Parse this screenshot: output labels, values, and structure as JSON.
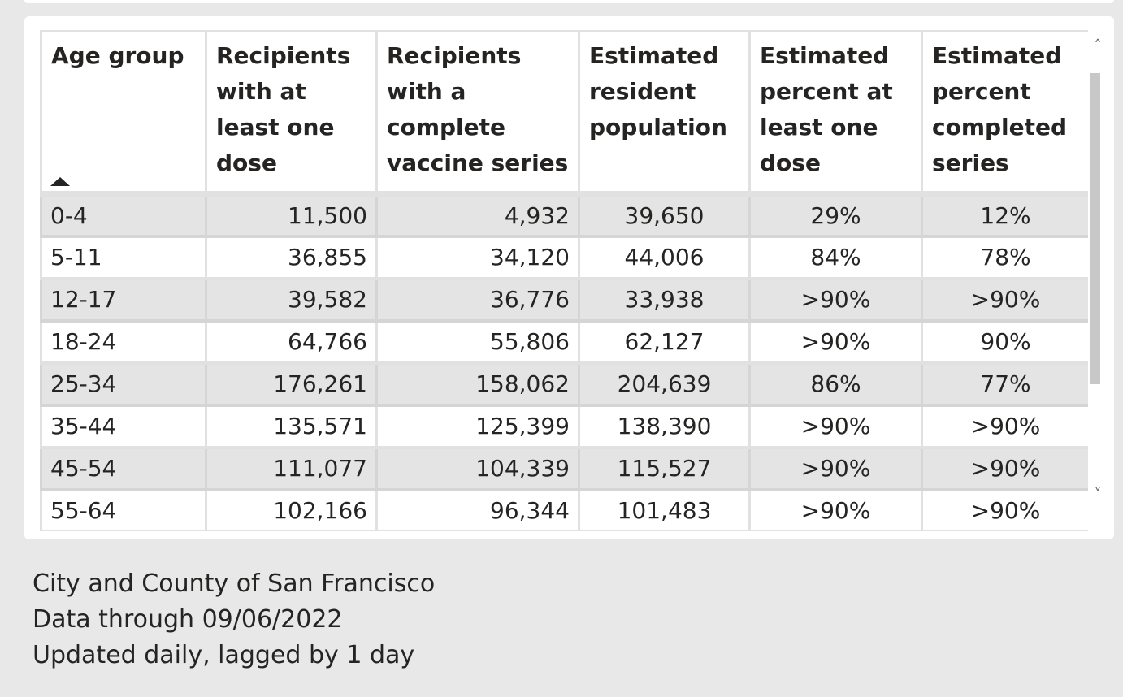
{
  "table": {
    "headers": [
      "Age group",
      "Recipients with at least one dose",
      "Recipients with a complete vaccine series",
      "Estimated resident population",
      "Estimated percent at least one dose",
      "Estimated percent completed series"
    ],
    "sort": {
      "column": "Age group",
      "direction": "ascending"
    },
    "rows": [
      [
        "0-4",
        "11,500",
        "4,932",
        "39,650",
        "29%",
        "12%"
      ],
      [
        "5-11",
        "36,855",
        "34,120",
        "44,006",
        "84%",
        "78%"
      ],
      [
        "12-17",
        "39,582",
        "36,776",
        "33,938",
        ">90%",
        ">90%"
      ],
      [
        "18-24",
        "64,766",
        "55,806",
        "62,127",
        ">90%",
        "90%"
      ],
      [
        "25-34",
        "176,261",
        "158,062",
        "204,639",
        "86%",
        "77%"
      ],
      [
        "35-44",
        "135,571",
        "125,399",
        "138,390",
        ">90%",
        ">90%"
      ],
      [
        "45-54",
        "111,077",
        "104,339",
        "115,527",
        ">90%",
        ">90%"
      ],
      [
        "55-64",
        "102,166",
        "96,344",
        "101,483",
        ">90%",
        ">90%"
      ]
    ]
  },
  "scrollbar": {
    "up_icon": "chevron-up-icon",
    "down_icon": "chevron-down-icon",
    "up_glyph": "˄",
    "down_glyph": "˅"
  },
  "footer": {
    "line1": "City and County of San Francisco",
    "line2": "Data through 09/06/2022",
    "line3": "Updated daily, lagged by 1 day"
  },
  "colors": {
    "background": "#e8e8e8",
    "panel": "#ffffff",
    "row_alt": "#e4e4e4",
    "grid_line": "#e1e1e1",
    "text": "#252423"
  }
}
